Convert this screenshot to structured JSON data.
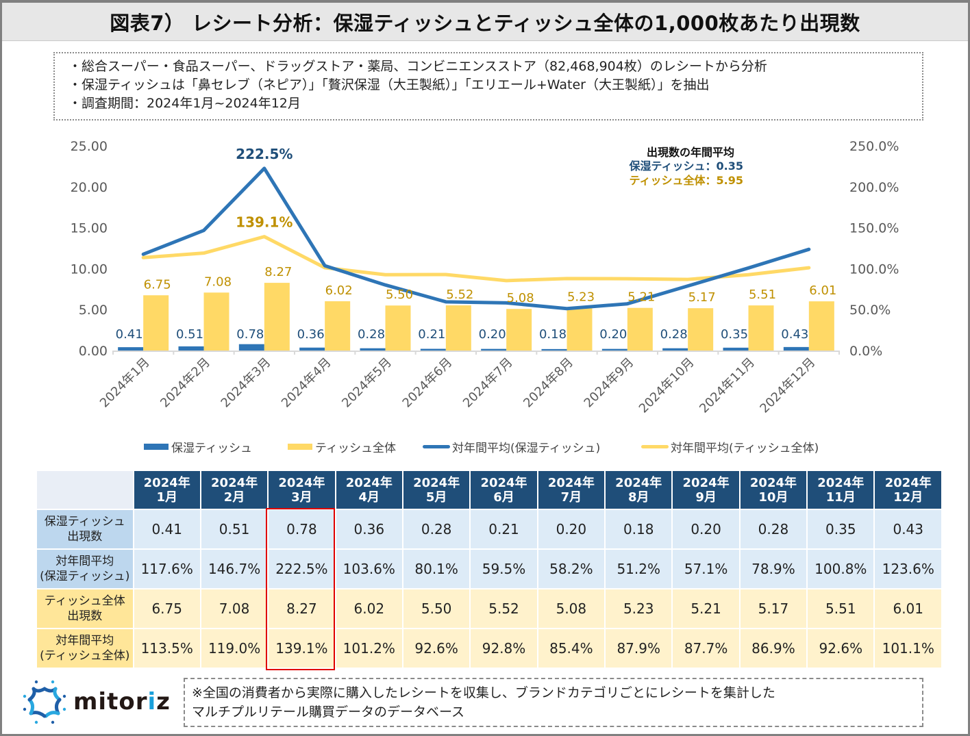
{
  "header": {
    "title": "図表7） レシート分析：保湿ティッシュとティッシュ全体の1,000枚あたり出現数"
  },
  "notes": [
    "・総合スーパー・食品スーパー、ドラッグストア・薬局、コンビニエンスストア（82,468,904枚）のレシートから分析",
    "・保湿ティッシュは「鼻セレブ（ネピア）」「贅沢保湿（大王製紙）」「エリエール+Water（大王製紙）」を抽出",
    "・調査期間：2024年1月~2024年12月"
  ],
  "colors": {
    "moist_bar": "#2e75b6",
    "tissue_bar": "#ffd966",
    "moist_line": "#2e75b6",
    "tissue_line": "#ffd966",
    "moist_label": "#1f4e79",
    "tissue_label": "#bf9000",
    "header_bg": "#1f4e79",
    "highlight": "#e00000"
  },
  "chart_data": {
    "type": "bar+line",
    "categories": [
      "2024年1月",
      "2024年2月",
      "2024年3月",
      "2024年4月",
      "2024年5月",
      "2024年6月",
      "2024年7月",
      "2024年8月",
      "2024年9月",
      "2024年10月",
      "2024年11月",
      "2024年12月"
    ],
    "series": [
      {
        "name": "保湿ティッシュ",
        "type": "bar",
        "axis": "left",
        "values": [
          0.41,
          0.51,
          0.78,
          0.36,
          0.28,
          0.21,
          0.2,
          0.18,
          0.2,
          0.28,
          0.35,
          0.43
        ],
        "labels": [
          "0.41",
          "0.51",
          "0.78",
          "0.36",
          "0.28",
          "0.21",
          "0.20",
          "0.18",
          "0.20",
          "0.28",
          "0.35",
          "0.43"
        ]
      },
      {
        "name": "ティッシュ全体",
        "type": "bar",
        "axis": "left",
        "values": [
          6.75,
          7.08,
          8.27,
          6.02,
          5.5,
          5.52,
          5.08,
          5.23,
          5.21,
          5.17,
          5.51,
          6.01
        ],
        "labels": [
          "6.75",
          "7.08",
          "8.27",
          "6.02",
          "5.50",
          "5.52",
          "5.08",
          "5.23",
          "5.21",
          "5.17",
          "5.51",
          "6.01"
        ]
      },
      {
        "name": "対年間平均(保湿ティッシュ)",
        "type": "line",
        "axis": "right",
        "values": [
          117.6,
          146.7,
          222.5,
          103.6,
          80.1,
          59.5,
          58.2,
          51.2,
          57.1,
          78.9,
          100.8,
          123.6
        ]
      },
      {
        "name": "対年間平均(ティッシュ全体)",
        "type": "line",
        "axis": "right",
        "values": [
          113.5,
          119.0,
          139.1,
          101.2,
          92.6,
          92.8,
          85.4,
          87.9,
          87.7,
          86.9,
          92.6,
          101.1
        ]
      }
    ],
    "annotations": [
      {
        "series": "対年間平均(保湿ティッシュ)",
        "index": 2,
        "text": "222.5%"
      },
      {
        "series": "対年間平均(ティッシュ全体)",
        "index": 2,
        "text": "139.1%"
      }
    ],
    "left_axis": {
      "ylim": [
        0,
        25
      ],
      "ticks": [
        "0.00",
        "5.00",
        "10.00",
        "15.00",
        "20.00",
        "25.00"
      ]
    },
    "right_axis": {
      "ylim": [
        0,
        250
      ],
      "ticks": [
        "0.0%",
        "50.0%",
        "100.0%",
        "150.0%",
        "200.0%",
        "250.0%"
      ]
    },
    "annual_avg_box": {
      "title": "出現数の年間平均",
      "moist": "保湿ティッシュ：0.35",
      "tissue": "ティッシュ全体：5.95"
    },
    "legend_position": "bottom",
    "grid": false
  },
  "legend": [
    {
      "label": "保湿ティッシュ",
      "kind": "bar"
    },
    {
      "label": "ティッシュ全体",
      "kind": "bar"
    },
    {
      "label": "対年間平均(保湿ティッシュ)",
      "kind": "line"
    },
    {
      "label": "対年間平均(ティッシュ全体)",
      "kind": "line"
    }
  ],
  "table": {
    "columns": [
      {
        "year": "2024年",
        "month": "1月"
      },
      {
        "year": "2024年",
        "month": "2月"
      },
      {
        "year": "2024年",
        "month": "3月"
      },
      {
        "year": "2024年",
        "month": "4月"
      },
      {
        "year": "2024年",
        "month": "5月"
      },
      {
        "year": "2024年",
        "month": "6月"
      },
      {
        "year": "2024年",
        "month": "7月"
      },
      {
        "year": "2024年",
        "month": "8月"
      },
      {
        "year": "2024年",
        "month": "9月"
      },
      {
        "year": "2024年",
        "month": "10月"
      },
      {
        "year": "2024年",
        "month": "11月"
      },
      {
        "year": "2024年",
        "month": "12月"
      }
    ],
    "rows": [
      {
        "label1": "保湿ティッシュ",
        "label2": "出現数",
        "theme": "blue",
        "values": [
          "0.41",
          "0.51",
          "0.78",
          "0.36",
          "0.28",
          "0.21",
          "0.20",
          "0.18",
          "0.20",
          "0.28",
          "0.35",
          "0.43"
        ]
      },
      {
        "label1": "対年間平均",
        "label2": "(保湿ティッシュ)",
        "theme": "blue",
        "values": [
          "117.6%",
          "146.7%",
          "222.5%",
          "103.6%",
          "80.1%",
          "59.5%",
          "58.2%",
          "51.2%",
          "57.1%",
          "78.9%",
          "100.8%",
          "123.6%"
        ]
      },
      {
        "label1": "ティッシュ全体",
        "label2": "出現数",
        "theme": "yellow",
        "values": [
          "6.75",
          "7.08",
          "8.27",
          "6.02",
          "5.50",
          "5.52",
          "5.08",
          "5.23",
          "5.21",
          "5.17",
          "5.51",
          "6.01"
        ]
      },
      {
        "label1": "対年間平均",
        "label2": "(ティッシュ全体)",
        "theme": "yellow",
        "values": [
          "113.5%",
          "119.0%",
          "139.1%",
          "101.2%",
          "92.6%",
          "92.8%",
          "85.4%",
          "87.9%",
          "87.7%",
          "86.9%",
          "92.6%",
          "101.1%"
        ]
      }
    ],
    "highlighted_column": "2024年3月"
  },
  "footer": {
    "logo_text_pre": "mit",
    "logo_text_accent": "o",
    "logo_text_mid": "r",
    "logo_text_i": "i",
    "logo_text_post": "z",
    "note_line1": "※全国の消費者から実際に購入したレシートを収集し、ブランドカテゴリごとにレシートを集計した",
    "note_line2": "マルチプルリテール購買データのデータベース"
  }
}
